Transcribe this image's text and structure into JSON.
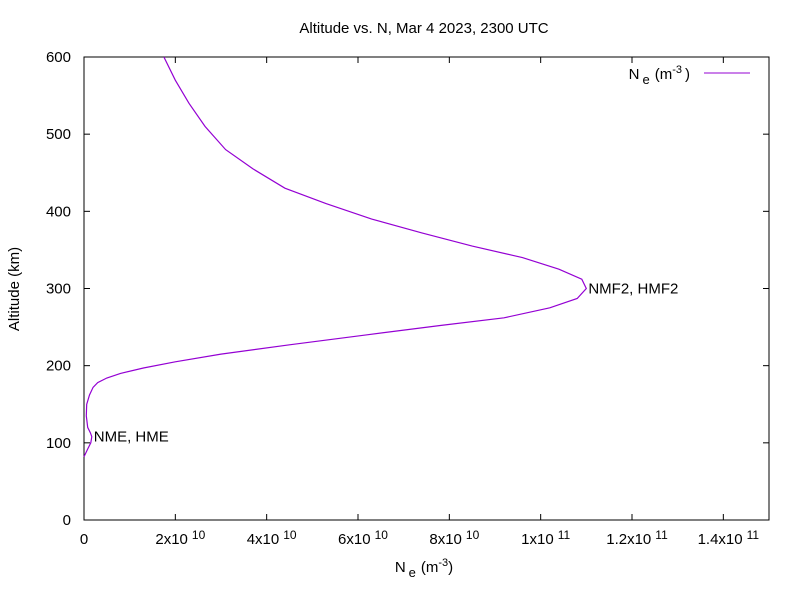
{
  "chart_data": {
    "type": "line",
    "title": "Altitude vs. N, Mar 4 2023, 2300 UTC",
    "xlabel": {
      "main": "N",
      "sub": "e",
      "unit_pre": "(m",
      "unit_sup": "-3",
      "unit_post": ")"
    },
    "ylabel": "Altitude (km)",
    "xlim": [
      0,
      150000000000
    ],
    "ylim": [
      0,
      600
    ],
    "x_ticks": [
      {
        "value": 0,
        "mant": "0",
        "exp": ""
      },
      {
        "value": 20000000000,
        "mant": "2x10",
        "exp": "10"
      },
      {
        "value": 40000000000,
        "mant": "4x10",
        "exp": "10"
      },
      {
        "value": 60000000000,
        "mant": "6x10",
        "exp": "10"
      },
      {
        "value": 80000000000,
        "mant": "8x10",
        "exp": "10"
      },
      {
        "value": 100000000000,
        "mant": "1x10",
        "exp": "11"
      },
      {
        "value": 120000000000,
        "mant": "1.2x10",
        "exp": "11"
      },
      {
        "value": 140000000000,
        "mant": "1.4x10",
        "exp": "11"
      }
    ],
    "y_ticks": [
      0,
      100,
      200,
      300,
      400,
      500,
      600
    ],
    "grid": false,
    "legend_position": "top-right",
    "series": [
      {
        "name": {
          "main": "N",
          "sub": "e",
          "unit_pre": "(m",
          "unit_sup": "-3",
          "unit_post": ")"
        },
        "color": "#9400d3",
        "x": [
          0,
          800000000,
          1500000000,
          1700000000,
          1400000000,
          800000000,
          500000000,
          600000000,
          1200000000,
          2000000000,
          3000000000,
          5000000000,
          8000000000,
          13000000000,
          20000000000,
          30000000000,
          45000000000,
          62000000000,
          78000000000,
          92000000000,
          102000000000,
          108000000000,
          110000000000,
          109000000000,
          104000000000,
          96000000000,
          85000000000,
          74000000000,
          63000000000,
          53000000000,
          44000000000,
          37000000000,
          31000000000,
          26500000000,
          23000000000,
          20000000000,
          17500000000
        ],
        "y": [
          82,
          92,
          100,
          108,
          113,
          120,
          135,
          150,
          162,
          172,
          178,
          184,
          190,
          197,
          205,
          215,
          227,
          240,
          252,
          262,
          275,
          287,
          300,
          312,
          325,
          340,
          355,
          372,
          390,
          410,
          430,
          455,
          480,
          510,
          540,
          570,
          600
        ]
      }
    ],
    "annotations": [
      {
        "text": "NME, HME",
        "x": 1700000000,
        "y": 108
      },
      {
        "text": "NMF2, HMF2",
        "x": 110000000000,
        "y": 300
      }
    ]
  }
}
